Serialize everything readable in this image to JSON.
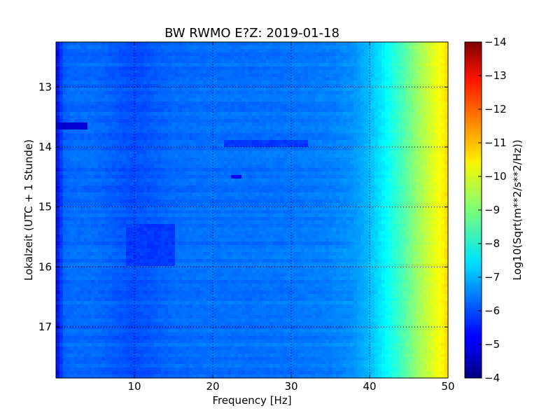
{
  "chart_data": {
    "type": "heatmap",
    "title": "BW RWMO E?Z: 2019-01-18",
    "xlabel": "Frequency [Hz]",
    "ylabel": "Lokalzeit (UTC + 1 Stunde)",
    "x_range": [
      0,
      50
    ],
    "x_ticks": [
      10,
      20,
      30,
      40,
      50
    ],
    "x_tick_labels": [
      "10",
      "20",
      "30",
      "40",
      "50"
    ],
    "y_range": [
      12.25,
      17.85
    ],
    "y_ticks": [
      13,
      14,
      15,
      16,
      17
    ],
    "y_tick_labels": [
      "13",
      "14",
      "15",
      "16",
      "17"
    ],
    "y_inverted": true,
    "grid": true,
    "colorbar": {
      "label": "Log10(Sqrt(m**2/s**2/Hz))",
      "range": [
        -14,
        -4
      ],
      "ticks": [
        -4,
        -5,
        -6,
        -7,
        -8,
        -9,
        -10,
        -11,
        -12,
        -13,
        -14
      ],
      "tick_labels": [
        "−4",
        "−5",
        "−6",
        "−7",
        "−8",
        "−9",
        "−10",
        "−11",
        "−12",
        "−13",
        "−14"
      ],
      "colormap": "jet"
    },
    "value_profile": {
      "frequencies_hz": [
        0,
        0.5,
        1,
        2,
        5,
        10,
        15,
        20,
        25,
        30,
        35,
        38,
        40,
        42,
        44,
        46,
        48,
        50
      ],
      "log_amplitude": [
        -5.3,
        -5.7,
        -6.2,
        -6.3,
        -6.3,
        -6.0,
        -6.3,
        -6.35,
        -6.35,
        -6.4,
        -6.5,
        -6.7,
        -7.1,
        -7.7,
        -8.4,
        -9.2,
        -9.9,
        -10.6
      ]
    },
    "notable_features": [
      {
        "label": "",
        "time": 13.65,
        "freq_range": [
          0,
          4
        ],
        "value": -4.8
      },
      {
        "label": "",
        "time_range": [
          15.3,
          16.0
        ],
        "freq_range": [
          9,
          15
        ],
        "value": -5.8
      },
      {
        "label": "",
        "time": 14.5,
        "freq_range": [
          22.5,
          23.5
        ],
        "value": -5.2
      },
      {
        "label": "",
        "time": 13.95,
        "freq_range": [
          21.5,
          32
        ],
        "value": -5.8
      }
    ]
  }
}
